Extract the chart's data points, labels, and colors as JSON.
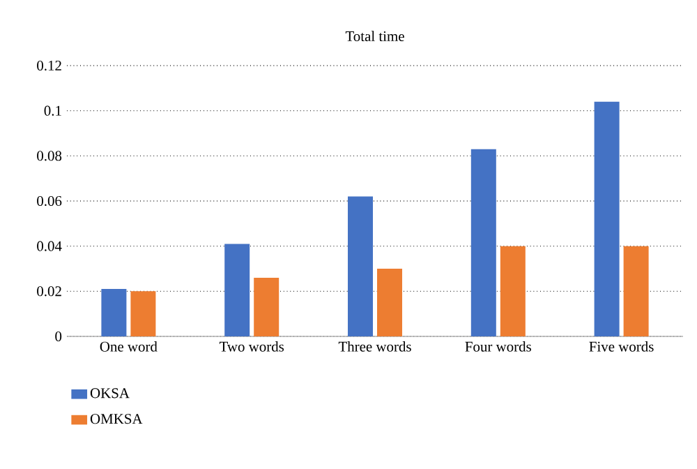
{
  "chart_data": {
    "type": "bar",
    "title": "Total time",
    "categories": [
      "One word",
      "Two words",
      "Three words",
      "Four words",
      "Five words"
    ],
    "series": [
      {
        "name": "OKSA",
        "color": "#4472c4",
        "values": [
          0.021,
          0.041,
          0.062,
          0.083,
          0.104
        ]
      },
      {
        "name": "OMKSA",
        "color": "#ed7d31",
        "values": [
          0.02,
          0.026,
          0.03,
          0.04,
          0.04
        ]
      }
    ],
    "ylim": [
      0,
      0.12
    ],
    "yticks": [
      0,
      0.02,
      0.04,
      0.06,
      0.08,
      0.1,
      0.12
    ],
    "grid": "y",
    "legend": "bottom left"
  }
}
